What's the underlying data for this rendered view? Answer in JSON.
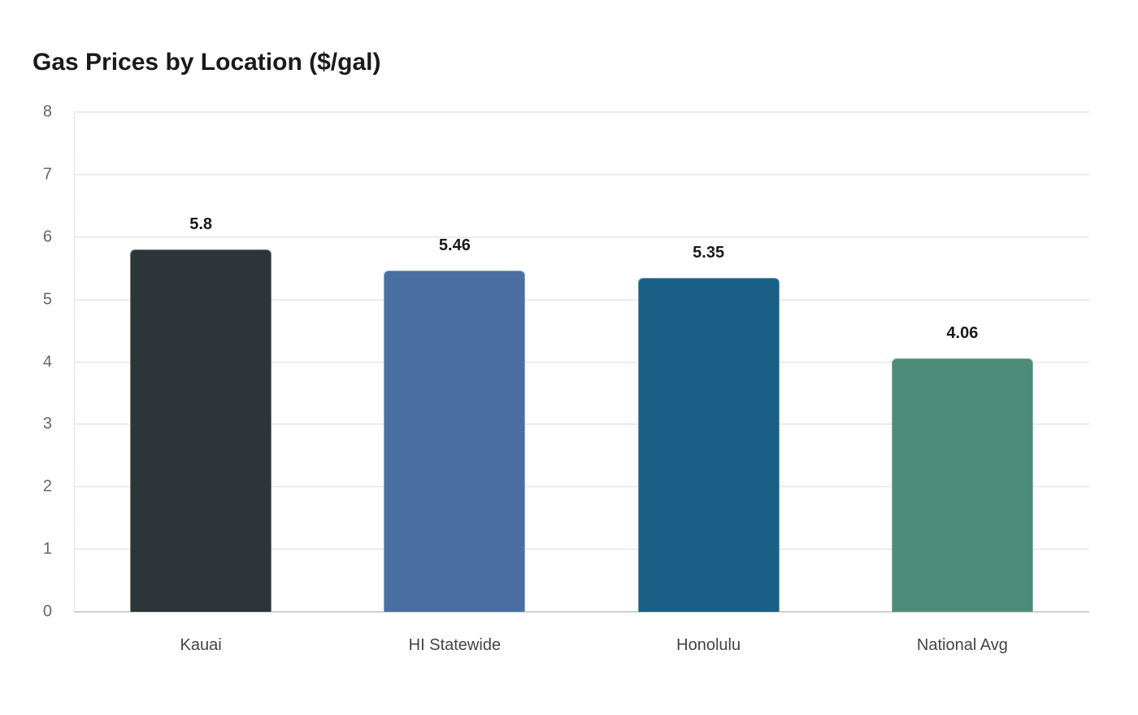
{
  "chart_data": {
    "type": "bar",
    "title": "Gas Prices by Location ($/gal)",
    "xlabel": "",
    "ylabel": "",
    "categories": [
      "Kauai",
      "HI Statewide",
      "Honolulu",
      "National Avg"
    ],
    "values": [
      5.8,
      5.46,
      5.35,
      4.06
    ],
    "value_labels": [
      "5.8",
      "5.46",
      "5.35",
      "4.06"
    ],
    "colors": [
      "#2e3538",
      "#4a6fa2",
      "#1a6086",
      "#4e8c7a"
    ],
    "ylim": [
      0,
      8
    ],
    "yticks": [
      "0",
      "1",
      "2",
      "3",
      "4",
      "5",
      "6",
      "7",
      "8"
    ],
    "grid": true,
    "legend": "none"
  }
}
